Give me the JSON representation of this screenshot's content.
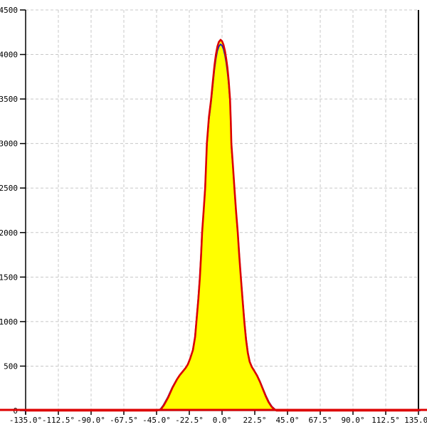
{
  "chart_data": {
    "type": "area",
    "title": "",
    "xlabel": "",
    "ylabel": "",
    "xlim": [
      -135,
      135
    ],
    "ylim": [
      0,
      4500
    ],
    "grid": true,
    "grid_color": "#c8c8c8",
    "axis_color": "#000000",
    "background_color": "#ffffff",
    "legend_position": "none",
    "x_ticks": [
      {
        "value": -135,
        "label": "-135.0°"
      },
      {
        "value": -112.5,
        "label": "-112.5°"
      },
      {
        "value": -90,
        "label": "-90.0°"
      },
      {
        "value": -67.5,
        "label": "-67.5°"
      },
      {
        "value": -45,
        "label": "-45.0°"
      },
      {
        "value": -22.5,
        "label": "-22.5°"
      },
      {
        "value": 0,
        "label": "0.0°"
      },
      {
        "value": 22.5,
        "label": "22.5°"
      },
      {
        "value": 45,
        "label": "45.0°"
      },
      {
        "value": 67.5,
        "label": "67.5°"
      },
      {
        "value": 90,
        "label": "90.0°"
      },
      {
        "value": 112.5,
        "label": "112.5°"
      },
      {
        "value": 135,
        "label": "135.0°"
      }
    ],
    "y_ticks": [
      {
        "value": 0,
        "label": "0"
      },
      {
        "value": 500,
        "label": "500"
      },
      {
        "value": 1000,
        "label": "1000"
      },
      {
        "value": 1500,
        "label": "1500"
      },
      {
        "value": 2000,
        "label": "2000"
      },
      {
        "value": 2500,
        "label": "2500"
      },
      {
        "value": 3000,
        "label": "3000"
      },
      {
        "value": 3500,
        "label": "3500"
      },
      {
        "value": 4000,
        "label": "4000"
      },
      {
        "value": 4500,
        "label": "4500"
      }
    ],
    "fill_color": "#ffff00",
    "baseline_extends_full_width": true,
    "series": [
      {
        "name": "pattern-red-outline",
        "color": "#dd0000",
        "stroke_width": 2.6,
        "points": [
          [
            -135,
            0
          ],
          [
            -60,
            0
          ],
          [
            -48,
            0
          ],
          [
            -45,
            0
          ],
          [
            -42,
            15
          ],
          [
            -40,
            60
          ],
          [
            -37,
            150
          ],
          [
            -34,
            260
          ],
          [
            -31,
            350
          ],
          [
            -29,
            400
          ],
          [
            -27,
            440
          ],
          [
            -25,
            480
          ],
          [
            -23.5,
            520
          ],
          [
            -22,
            580
          ],
          [
            -20,
            680
          ],
          [
            -18.5,
            830
          ],
          [
            -17.6,
            1000
          ],
          [
            -16.3,
            1250
          ],
          [
            -15.2,
            1500
          ],
          [
            -14.4,
            1750
          ],
          [
            -13.7,
            2000
          ],
          [
            -12.6,
            2250
          ],
          [
            -11.6,
            2500
          ],
          [
            -11,
            2750
          ],
          [
            -10.4,
            3000
          ],
          [
            -9,
            3300
          ],
          [
            -7.5,
            3500
          ],
          [
            -6.3,
            3700
          ],
          [
            -5.2,
            3880
          ],
          [
            -4.2,
            4000
          ],
          [
            -3.2,
            4090
          ],
          [
            -2.2,
            4140
          ],
          [
            -1,
            4165
          ],
          [
            0,
            4150
          ],
          [
            1,
            4110
          ],
          [
            2,
            4040
          ],
          [
            2.9,
            3950
          ],
          [
            3.7,
            3850
          ],
          [
            4.5,
            3720
          ],
          [
            5.5,
            3500
          ],
          [
            6,
            3250
          ],
          [
            6.4,
            3000
          ],
          [
            7.5,
            2750
          ],
          [
            8.5,
            2500
          ],
          [
            9.6,
            2250
          ],
          [
            10.8,
            2000
          ],
          [
            11.8,
            1750
          ],
          [
            12.9,
            1500
          ],
          [
            14.1,
            1250
          ],
          [
            15.3,
            1000
          ],
          [
            16.5,
            800
          ],
          [
            17.7,
            650
          ],
          [
            19,
            550
          ],
          [
            20.5,
            490
          ],
          [
            22,
            450
          ],
          [
            24,
            395
          ],
          [
            26,
            325
          ],
          [
            28,
            245
          ],
          [
            30,
            165
          ],
          [
            32,
            95
          ],
          [
            34,
            45
          ],
          [
            36,
            15
          ],
          [
            37.5,
            0
          ],
          [
            45,
            0
          ],
          [
            60,
            0
          ],
          [
            135,
            0
          ]
        ]
      },
      {
        "name": "pattern-blue-outline",
        "color": "#2020bb",
        "stroke_width": 2,
        "derived_from": "pattern-red-outline",
        "scale_angle": 1.01,
        "scale_value": 0.988
      }
    ]
  }
}
